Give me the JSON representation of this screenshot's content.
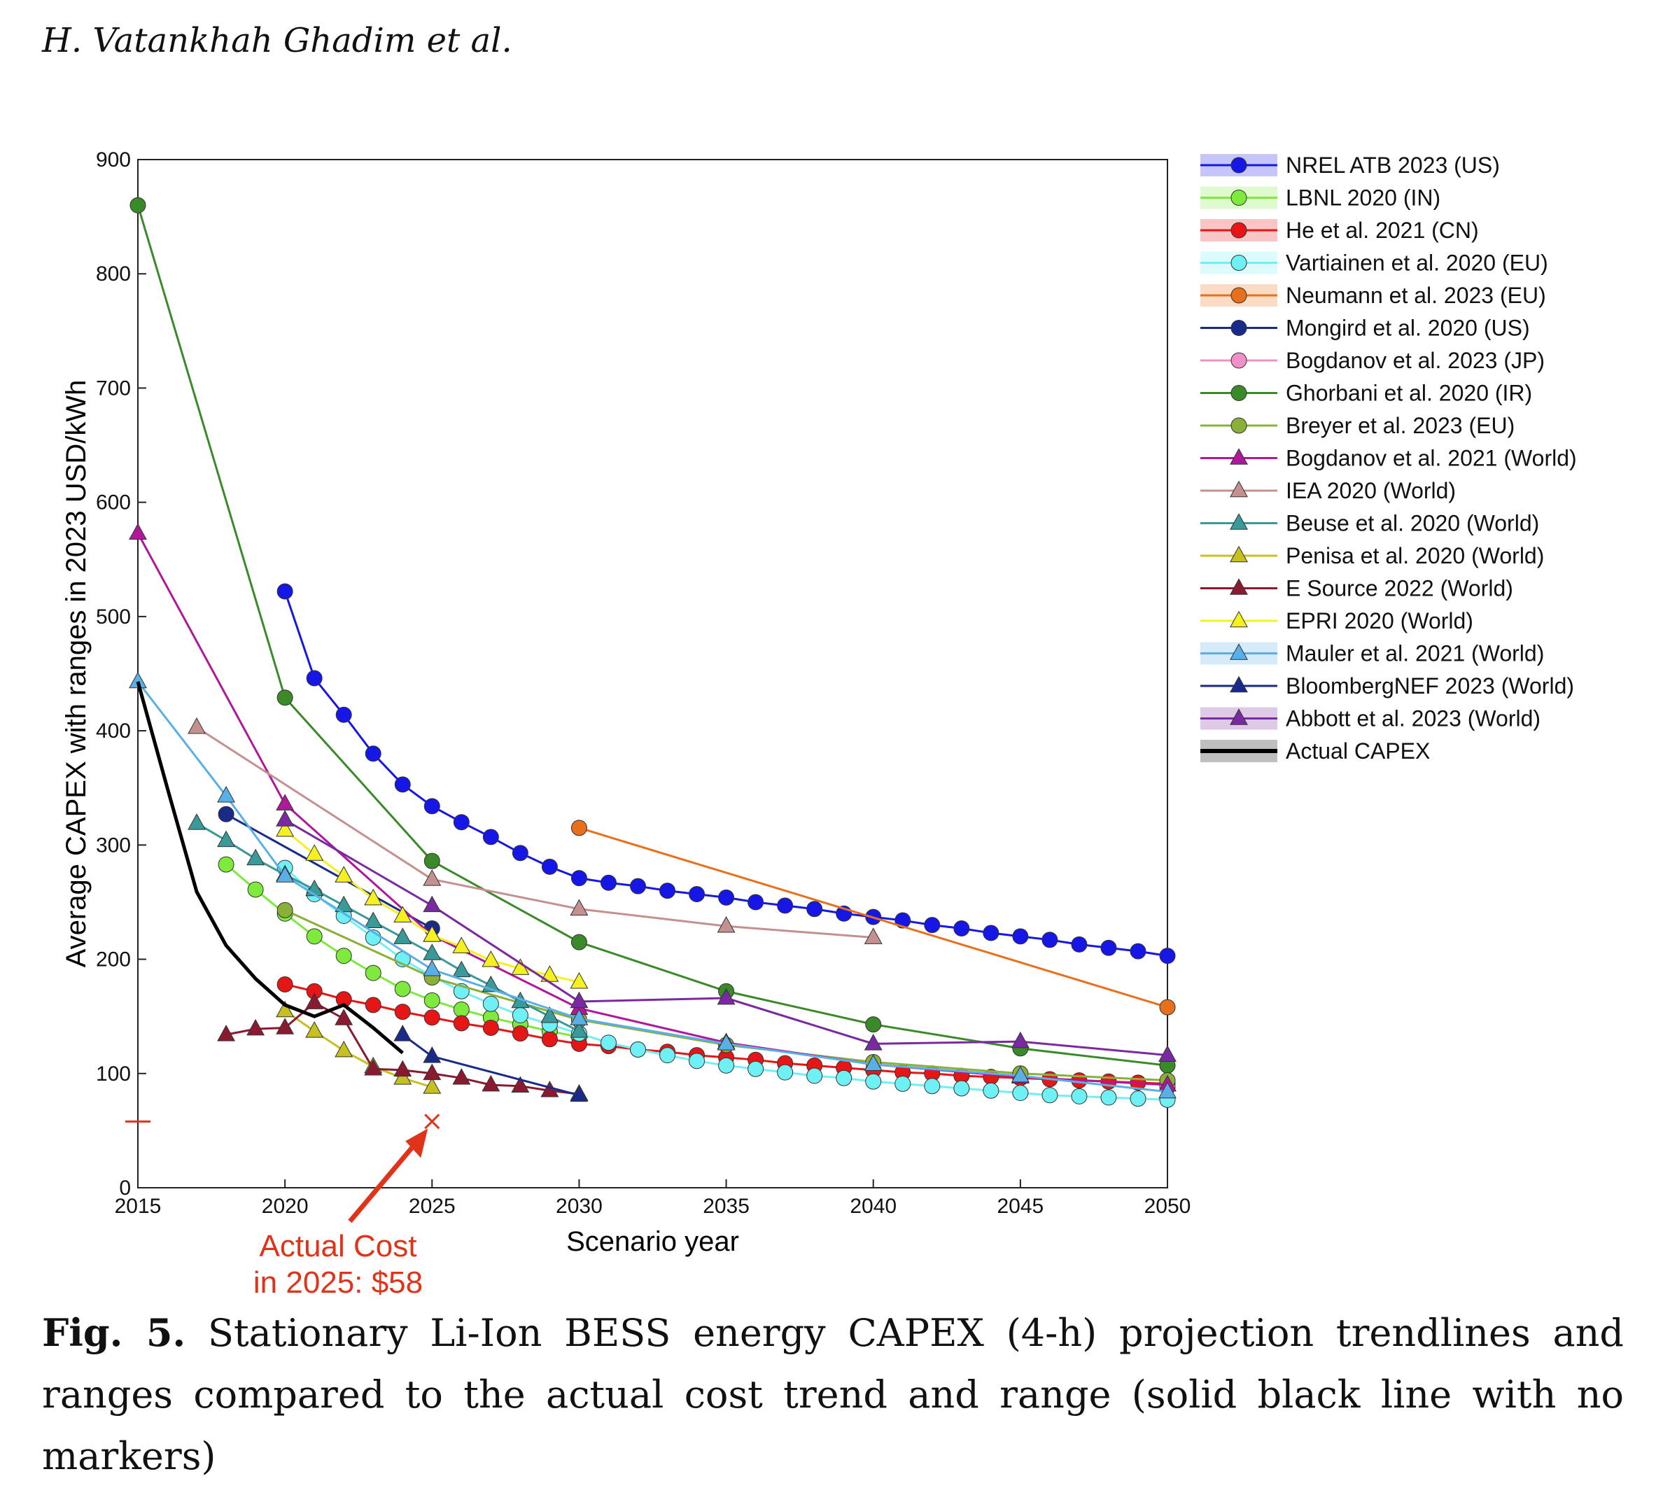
{
  "header": {
    "authors": "H. Vatankhah Ghadim et al."
  },
  "caption": {
    "label": "Fig. 5.",
    "text": "Stationary Li-Ion BESS energy CAPEX (4-h) projection trendlines and ranges compared to the actual cost trend and range (solid black line with no markers)"
  },
  "annotation": {
    "line1": "Actual Cost",
    "line2": "in 2025: $58",
    "color": "#e0331a"
  },
  "chart_data": {
    "type": "line",
    "title": "",
    "xlabel": "Scenario year",
    "ylabel": "Average CAPEX with ranges in 2023 USD/kWh",
    "xlim": [
      2015,
      2050
    ],
    "ylim": [
      0,
      900
    ],
    "xticks": [
      "2015",
      "2020",
      "2025",
      "2030",
      "2035",
      "2040",
      "2045",
      "2050"
    ],
    "yticks": [
      "0",
      "100",
      "200",
      "300",
      "400",
      "500",
      "600",
      "700",
      "800",
      "900"
    ],
    "legend_position": "outside-right",
    "actual_cost_2025": 58,
    "series": [
      {
        "name": "NREL ATB 2023 (US)",
        "color": "#1616e6",
        "marker": "circle",
        "band": true,
        "x": [
          2020,
          2021,
          2022,
          2023,
          2024,
          2025,
          2026,
          2027,
          2028,
          2029,
          2030,
          2031,
          2032,
          2033,
          2034,
          2035,
          2036,
          2037,
          2038,
          2039,
          2040,
          2041,
          2042,
          2043,
          2044,
          2045,
          2046,
          2047,
          2048,
          2049,
          2050
        ],
        "y": [
          522,
          446,
          414,
          380,
          353,
          334,
          320,
          307,
          293,
          281,
          271,
          267,
          264,
          260,
          257,
          254,
          250,
          247,
          244,
          240,
          237,
          234,
          230,
          227,
          223,
          220,
          217,
          213,
          210,
          207,
          203
        ]
      },
      {
        "name": "LBNL 2020 (IN)",
        "color": "#7eea3b",
        "marker": "circle",
        "band": true,
        "x": [
          2018,
          2019,
          2020,
          2021,
          2022,
          2023,
          2024,
          2025,
          2026,
          2027,
          2028,
          2029,
          2030
        ],
        "y": [
          283,
          261,
          240,
          220,
          203,
          188,
          174,
          164,
          156,
          149,
          143,
          137,
          132
        ]
      },
      {
        "name": "He et al. 2021 (CN)",
        "color": "#e61616",
        "marker": "circle",
        "band": true,
        "x": [
          2020,
          2021,
          2022,
          2023,
          2024,
          2025,
          2026,
          2027,
          2028,
          2029,
          2030,
          2031,
          2032,
          2033,
          2034,
          2035,
          2036,
          2037,
          2038,
          2039,
          2040,
          2041,
          2042,
          2043,
          2044,
          2045,
          2046,
          2047,
          2048,
          2049,
          2050
        ],
        "y": [
          178,
          172,
          165,
          160,
          154,
          149,
          144,
          140,
          135,
          130,
          126,
          124,
          121,
          119,
          116,
          114,
          112,
          109,
          107,
          105,
          103,
          101,
          100,
          98,
          97,
          96,
          95,
          94,
          93,
          92,
          91
        ]
      },
      {
        "name": "Vartiainen et al. 2020 (EU)",
        "color": "#6ff0f5",
        "marker": "circle",
        "band": true,
        "x": [
          2020,
          2021,
          2022,
          2023,
          2024,
          2025,
          2026,
          2027,
          2028,
          2029,
          2030,
          2031,
          2032,
          2033,
          2034,
          2035,
          2036,
          2037,
          2038,
          2039,
          2040,
          2041,
          2042,
          2043,
          2044,
          2045,
          2046,
          2047,
          2048,
          2049,
          2050
        ],
        "y": [
          280,
          257,
          238,
          219,
          200,
          185,
          172,
          161,
          151,
          143,
          135,
          127,
          121,
          116,
          111,
          107,
          104,
          101,
          98,
          96,
          93,
          91,
          89,
          87,
          85,
          83,
          81,
          80,
          79,
          78,
          77
        ]
      },
      {
        "name": "Neumann et al. 2023 (EU)",
        "color": "#e8701c",
        "marker": "circle",
        "band": true,
        "x": [
          2030,
          2050
        ],
        "y": [
          315,
          158
        ]
      },
      {
        "name": "Mongird et al. 2020 (US)",
        "color": "#1a2a8a",
        "marker": "circle",
        "band": false,
        "x": [
          2018,
          2025
        ],
        "y": [
          327,
          227
        ]
      },
      {
        "name": "Bogdanov et al. 2023 (JP)",
        "color": "#f08fc8",
        "marker": "circle",
        "band": false,
        "x": [
          2050
        ],
        "y": [
          88
        ]
      },
      {
        "name": "Ghorbani et al. 2020 (IR)",
        "color": "#3a8a2a",
        "marker": "circle",
        "band": false,
        "x": [
          2015,
          2020,
          2025,
          2030,
          2035,
          2040,
          2045,
          2050
        ],
        "y": [
          860,
          429,
          286,
          215,
          172,
          143,
          122,
          107
        ]
      },
      {
        "name": "Breyer et al. 2023 (EU)",
        "color": "#8ab03a",
        "marker": "circle",
        "band": false,
        "x": [
          2020,
          2025,
          2030,
          2035,
          2040,
          2045,
          2050
        ],
        "y": [
          243,
          184,
          147,
          125,
          110,
          100,
          94
        ]
      },
      {
        "name": "Bogdanov et al. 2021 (World)",
        "color": "#b0189a",
        "marker": "triangle",
        "band": false,
        "x": [
          2015,
          2020,
          2025,
          2030,
          2035,
          2040,
          2045,
          2050
        ],
        "y": [
          573,
          336,
          221,
          157,
          127,
          108,
          97,
          90
        ]
      },
      {
        "name": "IEA 2020 (World)",
        "color": "#c49090",
        "marker": "triangle",
        "band": false,
        "x": [
          2017,
          2025,
          2030,
          2035,
          2040
        ],
        "y": [
          403,
          270,
          244,
          229,
          219
        ]
      },
      {
        "name": "Beuse et al. 2020 (World)",
        "color": "#3a9a9a",
        "marker": "triangle",
        "band": false,
        "x": [
          2017,
          2018,
          2019,
          2020,
          2021,
          2022,
          2023,
          2024,
          2025,
          2026,
          2027,
          2028,
          2029,
          2030
        ],
        "y": [
          319,
          304,
          288,
          274,
          261,
          247,
          233,
          219,
          205,
          190,
          177,
          163,
          150,
          137
        ]
      },
      {
        "name": "Penisa et al. 2020 (World)",
        "color": "#c8c020",
        "marker": "triangle",
        "band": false,
        "x": [
          2020,
          2021,
          2022,
          2023,
          2024,
          2025
        ],
        "y": [
          155,
          137,
          120,
          106,
          96,
          88
        ]
      },
      {
        "name": "E Source 2022 (World)",
        "color": "#8a1a30",
        "marker": "triangle",
        "band": false,
        "x": [
          2018,
          2019,
          2020,
          2021,
          2022,
          2023,
          2024,
          2025,
          2026,
          2027,
          2028,
          2029,
          2030
        ],
        "y": [
          134,
          139,
          140,
          162,
          148,
          104,
          103,
          100,
          96,
          90,
          89,
          85,
          82
        ]
      },
      {
        "name": "EPRI 2020 (World)",
        "color": "#f5f020",
        "marker": "triangle",
        "band": false,
        "x": [
          2020,
          2021,
          2022,
          2023,
          2024,
          2025,
          2026,
          2027,
          2028,
          2029,
          2030
        ],
        "y": [
          313,
          292,
          273,
          253,
          238,
          221,
          211,
          199,
          192,
          186,
          180
        ]
      },
      {
        "name": "Mauler et al. 2021 (World)",
        "color": "#5ab0e6",
        "marker": "triangle",
        "band": true,
        "x": [
          2015,
          2018,
          2020,
          2025,
          2030,
          2035,
          2040,
          2045,
          2050
        ],
        "y": [
          443,
          343,
          273,
          191,
          148,
          126,
          108,
          98,
          84
        ]
      },
      {
        "name": "BloombergNEF 2023 (World)",
        "color": "#1a2a8a",
        "marker": "triangle",
        "band": false,
        "x": [
          2024,
          2025,
          2030
        ],
        "y": [
          134,
          115,
          81
        ]
      },
      {
        "name": "Abbott et al. 2023 (World)",
        "color": "#7a2aa0",
        "marker": "triangle",
        "band": true,
        "x": [
          2020,
          2025,
          2030,
          2035,
          2040,
          2045,
          2050
        ],
        "y": [
          322,
          247,
          163,
          166,
          126,
          128,
          116
        ]
      },
      {
        "name": "Actual CAPEX",
        "color": "#000000",
        "marker": "none",
        "band": true,
        "x": [
          2015,
          2016,
          2017,
          2018,
          2019,
          2020,
          2021,
          2022,
          2023,
          2024
        ],
        "y": [
          443,
          350,
          259,
          212,
          183,
          160,
          150,
          160,
          140,
          118
        ]
      }
    ]
  }
}
